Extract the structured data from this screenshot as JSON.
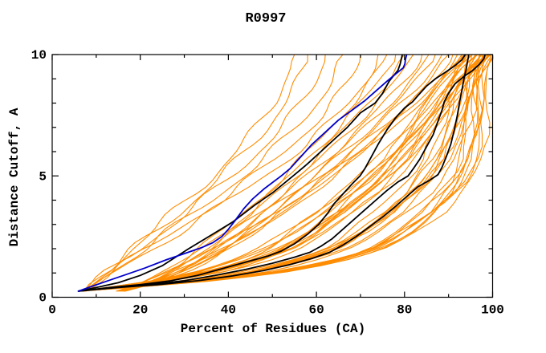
{
  "title": "R0997",
  "colors": {
    "background": "#ffffff",
    "frame": "#000000",
    "orange_model": "#ff8c00",
    "black_model": "#000000",
    "blue_model": "#0000cc"
  },
  "chart_data": {
    "type": "line",
    "title": "R0997",
    "xlabel": "Percent of Residues (CA)",
    "ylabel": "Distance Cutoff, A",
    "xlim": [
      0,
      100
    ],
    "ylim": [
      0,
      10
    ],
    "grid": "off",
    "legend": "none",
    "x_major_ticks": [
      0,
      20,
      40,
      60,
      80,
      100
    ],
    "x_minor_ticks": [
      10,
      30,
      50,
      70,
      90
    ],
    "x_tick_labels": [
      "0",
      "20",
      "40",
      "60",
      "80",
      "100"
    ],
    "y_major_ticks": [
      0,
      5,
      10
    ],
    "y_minor_ticks": [
      1,
      2,
      3,
      4,
      6,
      7,
      8,
      9
    ],
    "y_tick_labels": [
      "0",
      "5",
      "10"
    ],
    "series": [
      {
        "id": "blue-curve",
        "color_role": "blue_model",
        "width": 1.8,
        "points": [
          [
            6,
            0.25
          ],
          [
            9,
            0.45
          ],
          [
            13,
            0.7
          ],
          [
            17,
            0.95
          ],
          [
            21,
            1.2
          ],
          [
            26,
            1.55
          ],
          [
            30,
            1.8
          ],
          [
            34,
            2.05
          ],
          [
            36.5,
            2.25
          ],
          [
            38.5,
            2.5
          ],
          [
            40,
            2.8
          ],
          [
            41.5,
            3.15
          ],
          [
            43.5,
            3.65
          ],
          [
            45.5,
            4.05
          ],
          [
            48,
            4.45
          ],
          [
            52,
            5
          ],
          [
            54,
            5.3
          ],
          [
            56.5,
            5.8
          ],
          [
            59,
            6.3
          ],
          [
            62,
            6.8
          ],
          [
            65,
            7.3
          ],
          [
            68,
            7.7
          ],
          [
            71,
            8.1
          ],
          [
            73.5,
            8.5
          ],
          [
            76,
            8.9
          ],
          [
            78,
            9.2
          ],
          [
            79.7,
            9.45
          ],
          [
            80.1,
            9.62
          ],
          [
            80.2,
            9.8
          ],
          [
            80.5,
            10
          ]
        ]
      },
      {
        "id": "black-curve-1",
        "color_role": "black_model",
        "width": 1.8,
        "points": [
          [
            6,
            0.25
          ],
          [
            10,
            0.4
          ],
          [
            15,
            0.6
          ],
          [
            20,
            0.9
          ],
          [
            25,
            1.3
          ],
          [
            31,
            2
          ],
          [
            36,
            2.55
          ],
          [
            41,
            3.1
          ],
          [
            46,
            3.8
          ],
          [
            50,
            4.3
          ],
          [
            54.7,
            5
          ],
          [
            58,
            5.5
          ],
          [
            61,
            6
          ],
          [
            64,
            6.5
          ],
          [
            67,
            7
          ],
          [
            70,
            7.6
          ],
          [
            73.3,
            8
          ],
          [
            75,
            8.4
          ],
          [
            76.5,
            8.9
          ],
          [
            78.5,
            9.35
          ],
          [
            79,
            9.6
          ],
          [
            79.5,
            10
          ]
        ]
      },
      {
        "id": "black-curve-2",
        "color_role": "black_model",
        "width": 1.8,
        "points": [
          [
            6,
            0.25
          ],
          [
            13,
            0.4
          ],
          [
            20,
            0.52
          ],
          [
            27,
            0.68
          ],
          [
            33,
            0.9
          ],
          [
            39,
            1.2
          ],
          [
            44,
            1.45
          ],
          [
            49,
            1.7
          ],
          [
            52,
            1.9
          ],
          [
            55,
            2.2
          ],
          [
            58,
            2.6
          ],
          [
            60.5,
            3
          ],
          [
            62.5,
            3.45
          ],
          [
            64,
            3.85
          ],
          [
            66,
            4.25
          ],
          [
            68,
            4.65
          ],
          [
            69.9,
            5
          ],
          [
            71,
            5.3
          ],
          [
            72.5,
            5.8
          ],
          [
            74,
            6.3
          ],
          [
            76,
            6.9
          ],
          [
            78,
            7.4
          ],
          [
            80,
            7.8
          ],
          [
            81.8,
            8.05
          ],
          [
            83,
            8.3
          ],
          [
            85,
            8.7
          ],
          [
            87,
            9
          ],
          [
            89.5,
            9.3
          ],
          [
            91.5,
            9.55
          ],
          [
            93,
            9.78
          ],
          [
            93.8,
            10
          ]
        ]
      },
      {
        "id": "black-curve-3",
        "color_role": "black_model",
        "width": 1.8,
        "points": [
          [
            6,
            0.25
          ],
          [
            14,
            0.4
          ],
          [
            22,
            0.52
          ],
          [
            30,
            0.68
          ],
          [
            37,
            0.9
          ],
          [
            44,
            1.15
          ],
          [
            50,
            1.4
          ],
          [
            55,
            1.65
          ],
          [
            58.5,
            1.85
          ],
          [
            61,
            2.1
          ],
          [
            63.5,
            2.4
          ],
          [
            66,
            2.8
          ],
          [
            68.5,
            3.2
          ],
          [
            71,
            3.6
          ],
          [
            73.5,
            4
          ],
          [
            76,
            4.4
          ],
          [
            78.5,
            4.75
          ],
          [
            80.8,
            5
          ],
          [
            82,
            5.3
          ],
          [
            83.5,
            5.7
          ],
          [
            85,
            6.2
          ],
          [
            86.5,
            6.7
          ],
          [
            87.5,
            7.2
          ],
          [
            88.5,
            7.7
          ],
          [
            89,
            8.05
          ],
          [
            90,
            8.4
          ],
          [
            91.5,
            8.8
          ],
          [
            93.5,
            9.1
          ],
          [
            95.5,
            9.35
          ],
          [
            97,
            9.6
          ],
          [
            98,
            9.82
          ],
          [
            98.3,
            10
          ]
        ]
      },
      {
        "id": "black-curve-4",
        "color_role": "black_model",
        "width": 1.8,
        "points": [
          [
            6,
            0.25
          ],
          [
            15,
            0.4
          ],
          [
            24,
            0.52
          ],
          [
            33,
            0.68
          ],
          [
            41,
            0.88
          ],
          [
            48,
            1.1
          ],
          [
            54,
            1.35
          ],
          [
            59,
            1.6
          ],
          [
            63,
            1.85
          ],
          [
            66,
            2.15
          ],
          [
            69,
            2.5
          ],
          [
            72,
            2.9
          ],
          [
            75,
            3.3
          ],
          [
            78,
            3.75
          ],
          [
            80.5,
            4.15
          ],
          [
            83,
            4.55
          ],
          [
            85.5,
            4.8
          ],
          [
            87.6,
            5.05
          ],
          [
            88.5,
            5.35
          ],
          [
            89.5,
            5.8
          ],
          [
            90.5,
            6.3
          ],
          [
            91.3,
            6.9
          ],
          [
            92,
            7.5
          ],
          [
            92.5,
            8.05
          ],
          [
            93,
            8.5
          ],
          [
            93.5,
            9
          ],
          [
            94,
            9.4
          ],
          [
            94.3,
            9.7
          ],
          [
            94.6,
            10
          ]
        ]
      }
    ],
    "orange_models": {
      "color_role": "orange_model",
      "width": 1.1,
      "start_x": 6,
      "start_y": 0.25,
      "bundle_template": [
        [
          6,
          0.25
        ],
        [
          12,
          0.35
        ],
        [
          20,
          0.5
        ],
        [
          28,
          0.65
        ],
        [
          36,
          0.85
        ],
        [
          43,
          1.05
        ],
        [
          49,
          1.3
        ],
        [
          54,
          1.55
        ],
        [
          58,
          1.8
        ],
        [
          61.5,
          2.05
        ],
        [
          64.5,
          2.35
        ],
        [
          67.5,
          2.7
        ],
        [
          70.5,
          3.1
        ],
        [
          73.5,
          3.5
        ],
        [
          76,
          3.9
        ],
        [
          78.5,
          4.3
        ],
        [
          81,
          4.75
        ],
        [
          83,
          5.2
        ],
        [
          85,
          5.7
        ],
        [
          86.5,
          6.2
        ],
        [
          88,
          6.7
        ],
        [
          89.3,
          7.2
        ],
        [
          90.5,
          7.7
        ],
        [
          91.5,
          8.2
        ],
        [
          92.5,
          8.7
        ],
        [
          93.5,
          9.1
        ],
        [
          94.5,
          9.45
        ],
        [
          95.5,
          9.7
        ],
        [
          96.2,
          9.85
        ],
        [
          96.6,
          10
        ]
      ],
      "groups": [
        {
          "name": "left-outliers",
          "shape": {
            "a": 1.1,
            "b": 0.7,
            "c": 1.3
          },
          "jitter": 1.3,
          "tops": [
            55,
            58,
            62,
            66,
            70,
            74
          ]
        },
        {
          "name": "mid-models",
          "shape": {
            "a": 0.62,
            "b": 0.75,
            "c": 1.2
          },
          "jitter": 1.0,
          "tops": [
            76,
            78,
            80,
            82,
            84,
            85.5,
            87,
            88.5,
            90,
            91,
            92,
            93
          ]
        },
        {
          "name": "bundle-models",
          "shape": "template",
          "jitter": 0.8,
          "skew": 0.3,
          "tops": [
            93.2,
            93.6,
            94,
            94.3,
            94.7,
            95,
            95.3,
            95.6,
            95.9,
            96.2,
            96.4,
            96.6,
            96.8,
            97,
            97.2,
            97.4,
            97.6,
            97.8,
            98,
            98.2,
            98.4,
            98.6,
            98.8,
            99,
            99.1,
            99.3,
            99.5,
            99.6,
            99.8,
            99.9,
            100,
            99.2,
            97.9
          ]
        }
      ]
    }
  }
}
